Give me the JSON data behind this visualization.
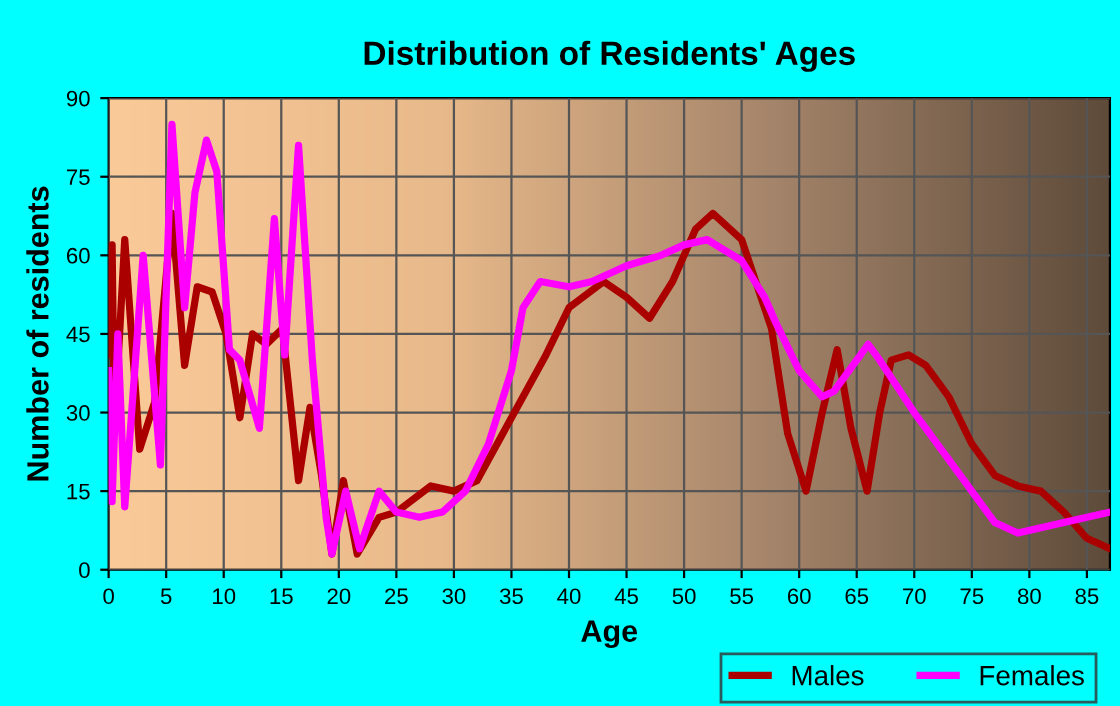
{
  "chart_data": {
    "type": "line",
    "title": "Distribution of Residents' Ages",
    "xlabel": "Age",
    "ylabel": "Number of residents",
    "xlim": [
      0,
      87
    ],
    "xticks": [
      0,
      5,
      10,
      15,
      20,
      25,
      30,
      35,
      40,
      45,
      50,
      55,
      60,
      65,
      70,
      75,
      80,
      85
    ],
    "ylim": [
      0,
      90
    ],
    "yticks": [
      0,
      15,
      30,
      45,
      60,
      75,
      90
    ],
    "grid": true,
    "legend": "bottom right",
    "series": [
      {
        "name": "Males",
        "color": "#aa0000",
        "x": [
          0,
          0.3,
          0.5,
          1.4,
          2.7,
          4,
          5.5,
          6.6,
          7.7,
          9,
          10.2,
          11.4,
          12.5,
          13.7,
          15.1,
          16.5,
          17.5,
          18.5,
          19.4,
          20.4,
          21.6,
          23.5,
          25,
          28,
          30,
          32,
          35,
          38,
          40,
          43,
          45,
          47,
          49,
          51,
          52.5,
          55,
          57.6,
          59,
          60.6,
          62,
          63.3,
          64.5,
          65.9,
          67,
          68,
          69.5,
          71,
          73,
          75,
          77,
          79,
          81,
          83,
          85,
          87
        ],
        "values": [
          41,
          62,
          27,
          63,
          23,
          32,
          68,
          39,
          54,
          53,
          45,
          29,
          45,
          43,
          46,
          17,
          31,
          18,
          3,
          17,
          3,
          10,
          11,
          16,
          15,
          17,
          29,
          41,
          50,
          55,
          52,
          48,
          55,
          65,
          68,
          63,
          46,
          26,
          15,
          30,
          42,
          27,
          15,
          30,
          40,
          41,
          39,
          33,
          24,
          18,
          16,
          15,
          11,
          6,
          4
        ]
      },
      {
        "name": "Females",
        "color": "#ff00ff",
        "x": [
          0,
          0.3,
          0.8,
          1.4,
          3,
          4.5,
          5.5,
          6.6,
          7.5,
          8.5,
          9.4,
          10.5,
          11.4,
          13.1,
          14.4,
          15.3,
          16.5,
          17.7,
          18.9,
          19.4,
          20.6,
          21.8,
          23.5,
          25,
          27,
          29,
          31,
          33,
          35,
          36,
          37.5,
          40,
          42,
          45,
          48,
          50,
          52,
          55,
          57,
          58,
          60,
          62,
          63,
          65,
          66,
          67,
          70,
          73,
          75,
          77,
          79,
          81,
          83,
          85,
          87
        ],
        "values": [
          38,
          13,
          45,
          12,
          60,
          20,
          85,
          50,
          72,
          82,
          76,
          42,
          40,
          27,
          67,
          41,
          81,
          40,
          10,
          3,
          15,
          4,
          15,
          11,
          10,
          11,
          15,
          24,
          38,
          50,
          55,
          54,
          55,
          58,
          60,
          62,
          63,
          59,
          52,
          47,
          38,
          33,
          34,
          40,
          43,
          40,
          30,
          21,
          15,
          9,
          7,
          8,
          9,
          10,
          11
        ]
      }
    ]
  }
}
